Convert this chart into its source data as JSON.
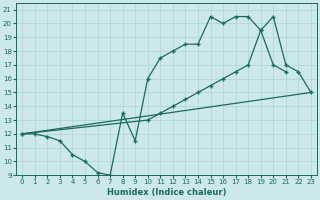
{
  "xlabel": "Humidex (Indice chaleur)",
  "bg_color": "#cce8eb",
  "grid_color": "#b0d8dc",
  "line_color": "#1a6b5a",
  "xlim": [
    -0.5,
    23.5
  ],
  "ylim": [
    9,
    21.5
  ],
  "xticks": [
    0,
    1,
    2,
    3,
    4,
    5,
    6,
    7,
    8,
    9,
    10,
    11,
    12,
    13,
    14,
    15,
    16,
    17,
    18,
    19,
    20,
    21,
    22,
    23
  ],
  "yticks": [
    9,
    10,
    11,
    12,
    13,
    14,
    15,
    16,
    17,
    18,
    19,
    20,
    21
  ],
  "line1_x": [
    0,
    1,
    2,
    3,
    4,
    5,
    6,
    7,
    8,
    9,
    10,
    11,
    12,
    13,
    14,
    15,
    16,
    17,
    18,
    19,
    20,
    21
  ],
  "line1_y": [
    12,
    12,
    11.8,
    11.5,
    10.5,
    10.0,
    9.2,
    9.0,
    13.5,
    11.5,
    16.0,
    17.5,
    18.0,
    18.5,
    18.5,
    20.5,
    20.0,
    20.5,
    20.5,
    19.5,
    17.0,
    16.5
  ],
  "line2_x": [
    0,
    23
  ],
  "line2_y": [
    12,
    15
  ],
  "line3_x": [
    0,
    10,
    11,
    12,
    13,
    14,
    15,
    16,
    17,
    18,
    19,
    20,
    21,
    22,
    23
  ],
  "line3_y": [
    12,
    13.0,
    13.5,
    14.0,
    14.5,
    15.0,
    15.5,
    16.0,
    16.5,
    17.0,
    19.5,
    20.5,
    17.0,
    16.5,
    15.0
  ]
}
